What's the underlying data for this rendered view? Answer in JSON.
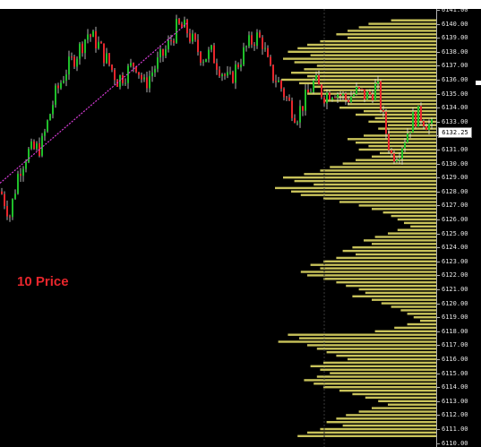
{
  "chart_data": {
    "type": "candlestick-with-volume-profile",
    "price_axis": {
      "min": 6110.0,
      "max": 6141.0,
      "ticks": [
        "6141.00",
        "6140.00",
        "6139.00",
        "6138.00",
        "6137.00",
        "6136.00",
        "6135.00",
        "6134.00",
        "6133.00",
        "6132.00",
        "6131.00",
        "6130.00",
        "6129.00",
        "6128.00",
        "6127.00",
        "6126.00",
        "6125.00",
        "6124.00",
        "6123.00",
        "6122.00",
        "6121.00",
        "6120.00",
        "6119.00",
        "6118.00",
        "6117.00",
        "6116.00",
        "6115.00",
        "6114.00",
        "6113.00",
        "6112.00",
        "6111.00",
        "6110.00"
      ]
    },
    "current_price": "6132.25",
    "annotation": "10 Price",
    "colors": {
      "bull_candle": "#1fbf2a",
      "bear_candle": "#e8262c",
      "wick": "#dcdcdc",
      "volume_profile": "#c8c25a",
      "trendline": "#d63bd6",
      "annotation": "#e8262c",
      "session_divider": "#3a3a3a"
    },
    "price_path": [
      [
        0,
        6128.0
      ],
      [
        10,
        6126.3
      ],
      [
        20,
        6129.5
      ],
      [
        30,
        6130.8
      ],
      [
        45,
        6131.2
      ],
      [
        60,
        6134.8
      ],
      [
        72,
        6136.6
      ],
      [
        85,
        6137.9
      ],
      [
        97,
        6139.3
      ],
      [
        108,
        6138.6
      ],
      [
        120,
        6137.2
      ],
      [
        130,
        6136.0
      ],
      [
        140,
        6136.5
      ],
      [
        150,
        6137.3
      ],
      [
        160,
        6135.6
      ],
      [
        172,
        6136.9
      ],
      [
        185,
        6138.2
      ],
      [
        197,
        6139.8
      ],
      [
        207,
        6139.6
      ],
      [
        215,
        6138.6
      ],
      [
        225,
        6137.6
      ],
      [
        235,
        6137.9
      ],
      [
        245,
        6136.8
      ],
      [
        255,
        6135.8
      ],
      [
        265,
        6137.2
      ],
      [
        275,
        6138.4
      ],
      [
        285,
        6139.1
      ],
      [
        292,
        6138.7
      ],
      [
        300,
        6136.6
      ],
      [
        310,
        6135.8
      ],
      [
        320,
        6134.5
      ],
      [
        330,
        6133.4
      ],
      [
        340,
        6134.6
      ],
      [
        350,
        6135.9
      ],
      [
        360,
        6134.9
      ],
      [
        372,
        6135.3
      ],
      [
        385,
        6134.6
      ],
      [
        397,
        6135.1
      ],
      [
        410,
        6134.8
      ],
      [
        420,
        6135.6
      ],
      [
        428,
        6132.8
      ],
      [
        436,
        6130.6
      ],
      [
        444,
        6130.9
      ],
      [
        452,
        6132.0
      ],
      [
        460,
        6133.2
      ],
      [
        468,
        6133.5
      ],
      [
        476,
        6132.9
      ],
      [
        483,
        6132.4
      ]
    ],
    "trendline": {
      "from": {
        "bar": 0,
        "price": 6128.6
      },
      "to": {
        "bar": 210,
        "price": 6140.1
      }
    },
    "session_divider_bar": 362,
    "volume_profile": [
      [
        6140.25,
        0.28
      ],
      [
        6140.0,
        0.42
      ],
      [
        6139.75,
        0.48
      ],
      [
        6139.5,
        0.55
      ],
      [
        6139.25,
        0.62
      ],
      [
        6139.0,
        0.55
      ],
      [
        6138.75,
        0.72
      ],
      [
        6138.5,
        0.8
      ],
      [
        6138.25,
        0.86
      ],
      [
        6138.0,
        0.92
      ],
      [
        6137.75,
        0.78
      ],
      [
        6137.5,
        0.95
      ],
      [
        6137.25,
        0.88
      ],
      [
        6137.0,
        0.74
      ],
      [
        6136.75,
        0.82
      ],
      [
        6136.5,
        0.9
      ],
      [
        6136.25,
        0.8
      ],
      [
        6136.0,
        0.96
      ],
      [
        6135.75,
        0.85
      ],
      [
        6135.5,
        0.76
      ],
      [
        6135.25,
        0.7
      ],
      [
        6135.0,
        0.8
      ],
      [
        6134.75,
        0.62
      ],
      [
        6134.5,
        0.7
      ],
      [
        6134.25,
        0.55
      ],
      [
        6134.0,
        0.6
      ],
      [
        6133.75,
        0.45
      ],
      [
        6133.5,
        0.5
      ],
      [
        6133.25,
        0.38
      ],
      [
        6133.0,
        0.42
      ],
      [
        6132.75,
        0.3
      ],
      [
        6132.5,
        0.36
      ],
      [
        6132.25,
        0.3
      ],
      [
        6132.0,
        0.45
      ],
      [
        6131.75,
        0.55
      ],
      [
        6131.5,
        0.5
      ],
      [
        6131.25,
        0.42
      ],
      [
        6131.0,
        0.48
      ],
      [
        6130.75,
        0.35
      ],
      [
        6130.5,
        0.4
      ],
      [
        6130.25,
        0.5
      ],
      [
        6130.0,
        0.58
      ],
      [
        6129.75,
        0.66
      ],
      [
        6129.5,
        0.72
      ],
      [
        6129.25,
        0.82
      ],
      [
        6129.0,
        0.95
      ],
      [
        6128.75,
        0.88
      ],
      [
        6128.5,
        0.76
      ],
      [
        6128.25,
        1.0
      ],
      [
        6128.0,
        0.9
      ],
      [
        6127.75,
        0.84
      ],
      [
        6127.5,
        0.7
      ],
      [
        6127.25,
        0.6
      ],
      [
        6127.0,
        0.48
      ],
      [
        6126.75,
        0.4
      ],
      [
        6126.5,
        0.33
      ],
      [
        6126.25,
        0.28
      ],
      [
        6126.0,
        0.24
      ],
      [
        6125.75,
        0.2
      ],
      [
        6125.5,
        0.16
      ],
      [
        6125.25,
        0.24
      ],
      [
        6125.0,
        0.3
      ],
      [
        6124.75,
        0.38
      ],
      [
        6124.5,
        0.45
      ],
      [
        6124.25,
        0.4
      ],
      [
        6124.0,
        0.52
      ],
      [
        6123.75,
        0.58
      ],
      [
        6123.5,
        0.5
      ],
      [
        6123.25,
        0.62
      ],
      [
        6123.0,
        0.7
      ],
      [
        6122.75,
        0.78
      ],
      [
        6122.5,
        0.72
      ],
      [
        6122.25,
        0.84
      ],
      [
        6122.0,
        0.8
      ],
      [
        6121.75,
        0.7
      ],
      [
        6121.5,
        0.62
      ],
      [
        6121.25,
        0.56
      ],
      [
        6121.0,
        0.48
      ],
      [
        6120.75,
        0.44
      ],
      [
        6120.5,
        0.52
      ],
      [
        6120.25,
        0.4
      ],
      [
        6120.0,
        0.34
      ],
      [
        6119.75,
        0.28
      ],
      [
        6119.5,
        0.22
      ],
      [
        6119.25,
        0.18
      ],
      [
        6119.0,
        0.14
      ],
      [
        6118.75,
        0.1
      ],
      [
        6118.5,
        0.18
      ],
      [
        6118.25,
        0.26
      ],
      [
        6118.0,
        0.38
      ],
      [
        6117.75,
        0.92
      ],
      [
        6117.5,
        0.85
      ],
      [
        6117.25,
        0.98
      ],
      [
        6117.0,
        0.8
      ],
      [
        6116.75,
        0.74
      ],
      [
        6116.5,
        0.68
      ],
      [
        6116.25,
        0.62
      ],
      [
        6116.0,
        0.55
      ],
      [
        6115.75,
        0.7
      ],
      [
        6115.5,
        0.78
      ],
      [
        6115.25,
        0.72
      ],
      [
        6115.0,
        0.66
      ],
      [
        6114.75,
        0.74
      ],
      [
        6114.5,
        0.82
      ],
      [
        6114.25,
        0.76
      ],
      [
        6114.0,
        0.7
      ],
      [
        6113.75,
        0.6
      ],
      [
        6113.5,
        0.52
      ],
      [
        6113.25,
        0.44
      ],
      [
        6113.0,
        0.36
      ],
      [
        6112.75,
        0.3
      ],
      [
        6112.5,
        0.4
      ],
      [
        6112.25,
        0.48
      ],
      [
        6112.0,
        0.56
      ],
      [
        6111.75,
        0.62
      ],
      [
        6111.5,
        0.68
      ],
      [
        6111.25,
        0.58
      ],
      [
        6111.0,
        0.72
      ],
      [
        6110.75,
        0.8
      ],
      [
        6110.5,
        0.86
      ]
    ]
  }
}
